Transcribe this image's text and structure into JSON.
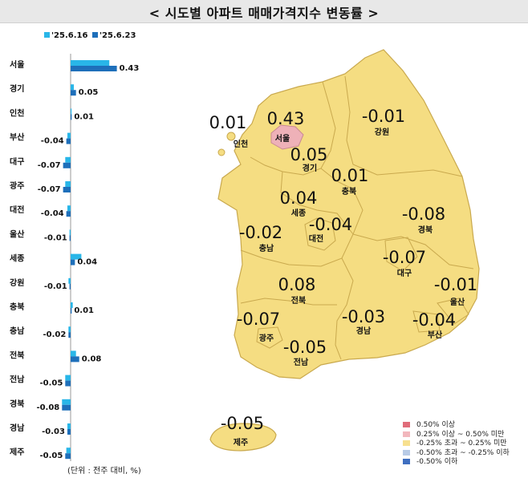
{
  "title": "< 시도별 아파트 매매가격지수 변동률 >",
  "unit_note": "(단위 : 전주 대비, %)",
  "colors": {
    "series_prev": "#29b6e8",
    "series_curr": "#1e6fba",
    "map_fill": "#f5dd82",
    "map_border": "#c9a94e",
    "seoul_fill": "#eeb1b8"
  },
  "chart_data": {
    "type": "bar",
    "orientation": "horizontal",
    "categories": [
      "서울",
      "경기",
      "인천",
      "부산",
      "대구",
      "광주",
      "대전",
      "울산",
      "세종",
      "강원",
      "충북",
      "충남",
      "전북",
      "전남",
      "경북",
      "경남",
      "제주"
    ],
    "series": [
      {
        "name": "'25.6.16",
        "values": [
          0.36,
          0.03,
          0.0,
          -0.03,
          -0.05,
          -0.05,
          -0.03,
          -0.01,
          0.1,
          -0.02,
          0.02,
          -0.02,
          0.05,
          -0.05,
          -0.08,
          -0.03,
          -0.04
        ]
      },
      {
        "name": "'25.6.23",
        "values": [
          0.43,
          0.05,
          0.01,
          -0.04,
          -0.07,
          -0.07,
          -0.04,
          -0.01,
          0.04,
          -0.01,
          0.01,
          -0.02,
          0.08,
          -0.05,
          -0.08,
          -0.03,
          -0.05
        ]
      }
    ],
    "data_labels": [
      "0.43",
      "0.05",
      "0.01",
      "-0.04",
      "-0.07",
      "-0.07",
      "-0.04",
      "-0.01",
      "0.04",
      "-0.01",
      "0.01",
      "-0.02",
      "0.08",
      "-0.05",
      "-0.08",
      "-0.03",
      "-0.05"
    ],
    "legend_position": "top"
  },
  "map": {
    "regions": [
      {
        "name": "인천",
        "value": "0.01"
      },
      {
        "name": "서울",
        "value": "0.43"
      },
      {
        "name": "경기",
        "value": "0.05"
      },
      {
        "name": "강원",
        "value": "-0.01"
      },
      {
        "name": "충북",
        "value": "0.01"
      },
      {
        "name": "세종",
        "value": "0.04"
      },
      {
        "name": "대전",
        "value": "-0.04"
      },
      {
        "name": "충남",
        "value": "-0.02"
      },
      {
        "name": "경북",
        "value": "-0.08"
      },
      {
        "name": "대구",
        "value": "-0.07"
      },
      {
        "name": "울산",
        "value": "-0.01"
      },
      {
        "name": "전북",
        "value": "0.08"
      },
      {
        "name": "광주",
        "value": "-0.07"
      },
      {
        "name": "전남",
        "value": "-0.05"
      },
      {
        "name": "경남",
        "value": "-0.03"
      },
      {
        "name": "부산",
        "value": "-0.04"
      },
      {
        "name": "제주",
        "value": "-0.05"
      }
    ],
    "legend": [
      {
        "label": "0.50% 이상",
        "color": "#e06c7a"
      },
      {
        "label": "0.25% 이상 ~ 0.50% 미만",
        "color": "#f2b7bd"
      },
      {
        "label": "-0.25% 초과 ~ 0.25% 미만",
        "color": "#f7e08f"
      },
      {
        "label": "-0.50% 초과 ~ -0.25% 이하",
        "color": "#b8cbe6"
      },
      {
        "label": "-0.50% 이하",
        "color": "#3f6fc0"
      }
    ]
  }
}
